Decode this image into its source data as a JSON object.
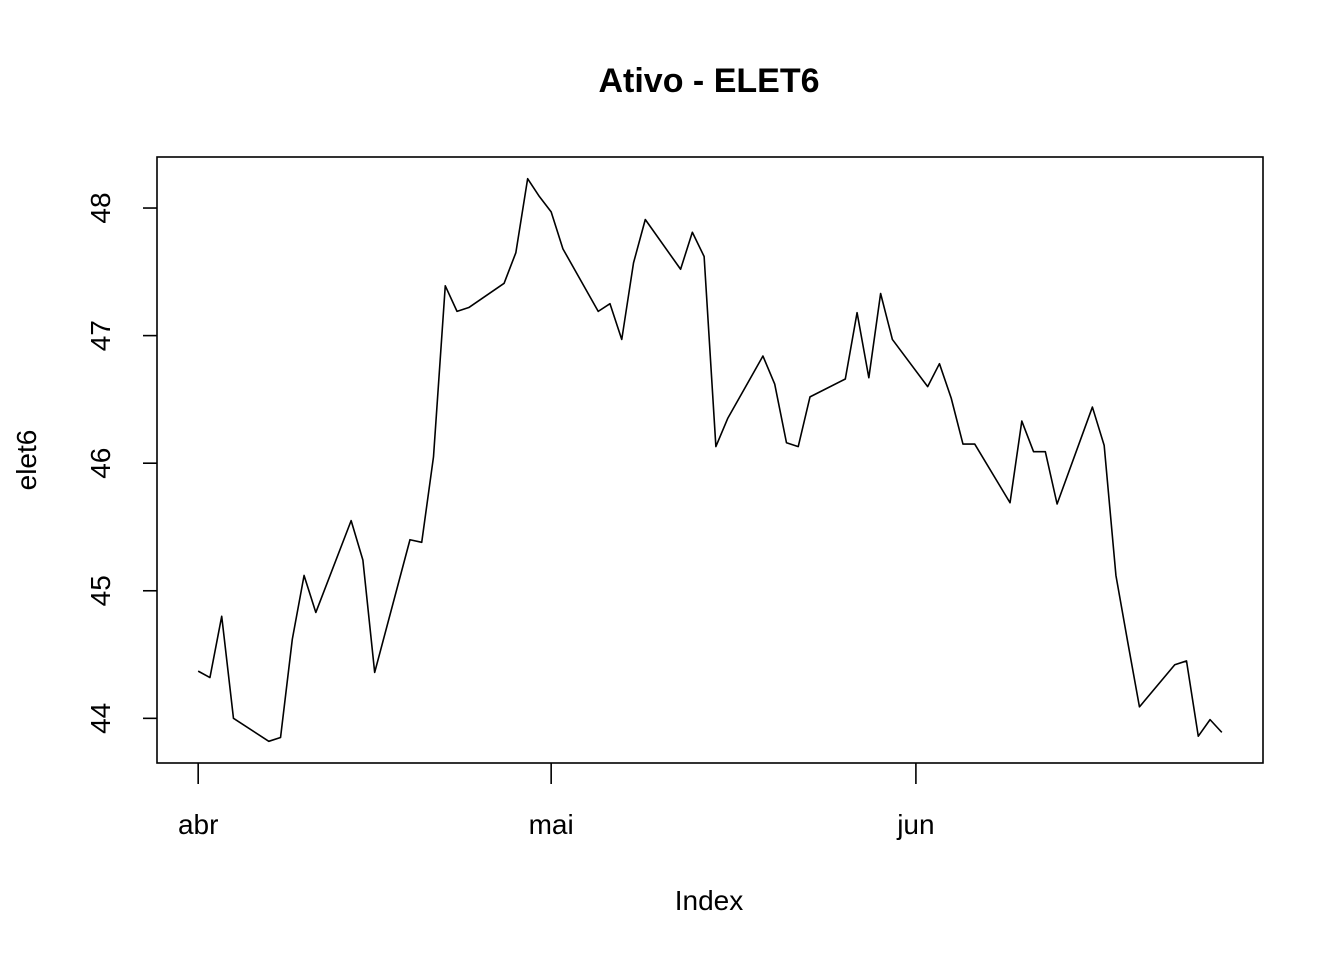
{
  "chart_data": {
    "type": "line",
    "title": "Ativo - ELET6",
    "xlabel": "Index",
    "ylabel": "elet6",
    "x_tick_labels": [
      "abr",
      "mai",
      "jun"
    ],
    "x_tick_positions": [
      0,
      30,
      61
    ],
    "y_ticks": [
      44,
      45,
      46,
      47,
      48
    ],
    "xlim": [
      -3.5,
      90.5
    ],
    "ylim": [
      43.65,
      48.4
    ],
    "grid": false,
    "legend": "none",
    "line_color": "#000000",
    "series": [
      {
        "x": [
          0,
          1,
          2,
          3,
          6,
          7,
          8,
          9,
          10,
          13,
          14,
          15,
          18,
          19,
          20,
          21,
          22,
          23,
          26,
          27,
          28,
          29,
          30,
          31,
          34,
          35,
          36,
          37,
          38,
          41,
          42,
          43,
          44,
          45,
          48,
          49,
          50,
          51,
          52,
          55,
          56,
          57,
          58,
          59,
          62,
          63,
          64,
          65,
          66,
          69,
          70,
          71,
          72,
          73,
          76,
          77,
          78,
          79,
          80,
          83,
          84,
          85,
          86,
          87
        ],
        "y": [
          44.37,
          44.32,
          44.8,
          44.0,
          43.82,
          43.85,
          44.62,
          45.12,
          44.83,
          45.55,
          45.24,
          44.36,
          45.4,
          45.38,
          46.05,
          47.39,
          47.19,
          47.22,
          47.41,
          47.65,
          48.23,
          48.09,
          47.97,
          47.68,
          47.19,
          47.25,
          46.97,
          47.57,
          47.91,
          47.52,
          47.81,
          47.62,
          46.13,
          46.35,
          46.84,
          46.62,
          46.16,
          46.13,
          46.52,
          46.66,
          47.18,
          46.67,
          47.33,
          46.97,
          46.6,
          46.78,
          46.51,
          46.15,
          46.15,
          45.69,
          46.33,
          46.09,
          46.09,
          45.68,
          46.44,
          46.14,
          45.12,
          44.6,
          44.09,
          44.42,
          44.45,
          43.86,
          43.99,
          43.89
        ]
      }
    ]
  }
}
